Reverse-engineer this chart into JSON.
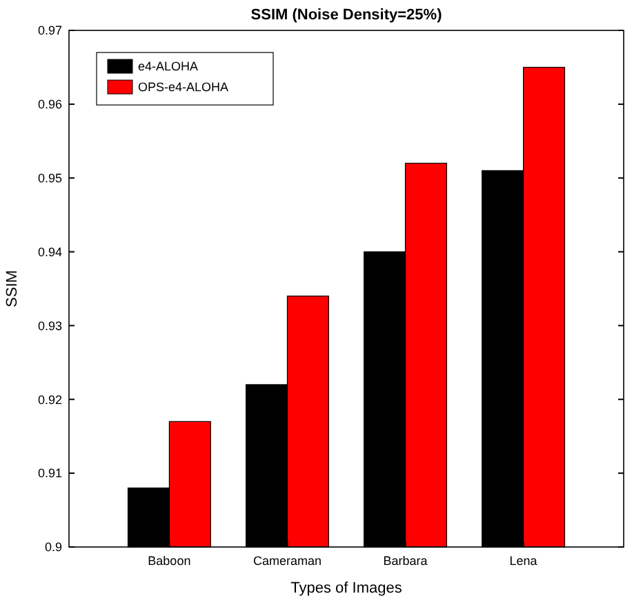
{
  "chart_data": {
    "type": "bar",
    "title": "SSIM (Noise Density=25%)",
    "xlabel": "Types of Images",
    "ylabel": "SSIM",
    "categories": [
      "Baboon",
      "Cameraman",
      "Barbara",
      "Lena"
    ],
    "series": [
      {
        "name": "e4-ALOHA",
        "color": "#000000",
        "values": [
          0.908,
          0.922,
          0.94,
          0.951
        ]
      },
      {
        "name": "OPS-e4-ALOHA",
        "color": "#ff0000",
        "values": [
          0.917,
          0.934,
          0.952,
          0.965
        ]
      }
    ],
    "ylim": [
      0.9,
      0.97
    ],
    "yticks": [
      0.9,
      0.91,
      0.92,
      0.93,
      0.94,
      0.95,
      0.96,
      0.97
    ],
    "legend": "top left",
    "grid": false
  }
}
